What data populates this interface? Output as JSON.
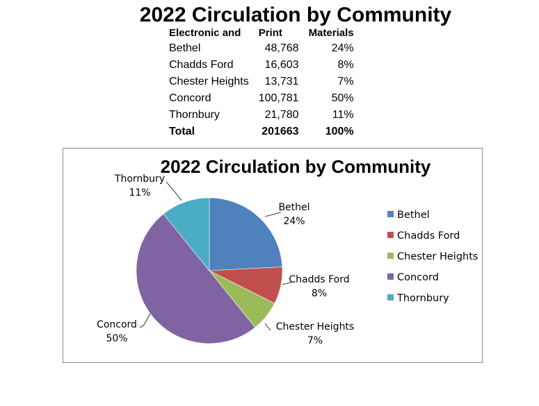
{
  "title": "2022 Circulation by Community",
  "table": {
    "headers": [
      "Electronic and",
      "Print",
      "Materials"
    ],
    "rows": [
      {
        "community": "Bethel",
        "print": "48,768",
        "pct": "24%"
      },
      {
        "community": "Chadds Ford",
        "print": "16,603",
        "pct": "8%"
      },
      {
        "community": "Chester Heights",
        "print": "13,731",
        "pct": "7%"
      },
      {
        "community": "Concord",
        "print": "100,781",
        "pct": "50%"
      },
      {
        "community": "Thornbury",
        "print": "21,780",
        "pct": "11%"
      }
    ],
    "total": {
      "label": "Total",
      "print": "201663",
      "pct": "100%"
    }
  },
  "chart_data": {
    "type": "pie",
    "title": "2022 Circulation by Community",
    "categories": [
      "Bethel",
      "Chadds Ford",
      "Chester Heights",
      "Concord",
      "Thornbury"
    ],
    "values": [
      48768,
      16603,
      13731,
      100781,
      21780
    ],
    "percent_labels": [
      "24%",
      "8%",
      "7%",
      "50%",
      "11%"
    ],
    "colors": [
      "#4F81BD",
      "#C0504D",
      "#9BBB59",
      "#8064A2",
      "#4BACC6"
    ],
    "legend": "right",
    "start": "12 o'clock, clockwise",
    "data_labels": "category and percentage, outside with leader lines"
  }
}
